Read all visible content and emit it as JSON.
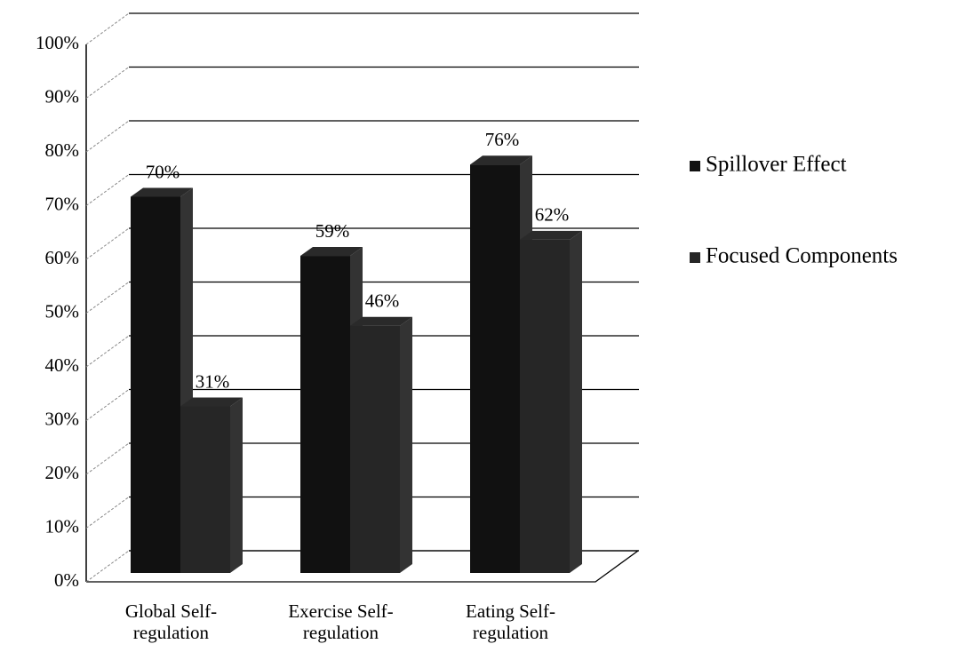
{
  "chart_data": {
    "type": "bar3d",
    "categories": [
      "Global Self-regulation",
      "Exercise Self-regulation",
      "Eating Self-regulation"
    ],
    "series": [
      {
        "name": "Spillover Effect",
        "color": "#111111",
        "values": [
          70,
          59,
          76
        ],
        "value_labels": [
          "70%",
          "59%",
          "76%"
        ]
      },
      {
        "name": "Focused Components",
        "color": "#262626",
        "values": [
          31,
          46,
          62
        ],
        "value_labels": [
          "31%",
          "46%",
          "62%"
        ]
      }
    ],
    "ylim": [
      0,
      100
    ],
    "yticks": [
      {
        "value": 0,
        "label": "0%"
      },
      {
        "value": 10,
        "label": "10%"
      },
      {
        "value": 20,
        "label": "20%"
      },
      {
        "value": 30,
        "label": "30%"
      },
      {
        "value": 40,
        "label": "40%"
      },
      {
        "value": 50,
        "label": "50%"
      },
      {
        "value": 60,
        "label": "60%"
      },
      {
        "value": 70,
        "label": "70%"
      },
      {
        "value": 80,
        "label": "80%"
      },
      {
        "value": 90,
        "label": "90%"
      },
      {
        "value": 100,
        "label": "100%"
      }
    ],
    "grid": true,
    "legend": "right"
  }
}
